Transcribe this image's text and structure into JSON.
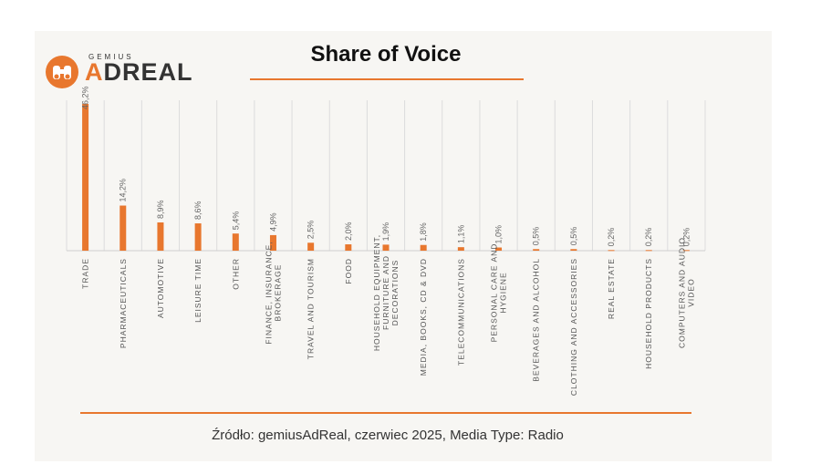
{
  "header": {
    "title": "Share of Voice",
    "logo_small": "GEMIUS",
    "logo_big_a": "A",
    "logo_big_rest": "DREAL"
  },
  "footer": {
    "source": "Źródło: gemiusAdReal, czerwiec 2025, Media Type: Radio"
  },
  "colors": {
    "accent": "#e8772e",
    "grid": "#dcdcdc"
  },
  "chart_data": {
    "type": "bar",
    "title": "Share of Voice",
    "xlabel": "",
    "ylabel": "",
    "grid": "vertical separators between categories",
    "categories": [
      [
        "TRADE"
      ],
      [
        "PHARMACEUTICALS"
      ],
      [
        "AUTOMOTIVE"
      ],
      [
        "LEISURE TIME"
      ],
      [
        "OTHER"
      ],
      [
        "FINANCE, INSURANCE,",
        "BROKERAGE"
      ],
      [
        "TRAVEL AND TOURISM"
      ],
      [
        "FOOD"
      ],
      [
        "HOUSEHOLD EQUIPMENT,",
        "FURNITURE AND",
        "DECORATIONS"
      ],
      [
        "MEDIA, BOOKS, CD & DVD"
      ],
      [
        "TELECOMMUNICATIONS"
      ],
      [
        "PERSONAL CARE AND",
        "HYGIENE"
      ],
      [
        "BEVERAGES AND ALCOHOL"
      ],
      [
        "CLOTHING AND ACCESSORIES"
      ],
      [
        "REAL ESTATE"
      ],
      [
        "HOUSEHOLD PRODUCTS"
      ],
      [
        "COMPUTERS AND AUDIO",
        "VIDEO"
      ]
    ],
    "values": [
      46.2,
      14.2,
      8.9,
      8.6,
      5.4,
      4.9,
      2.5,
      2.0,
      1.9,
      1.8,
      1.1,
      1.0,
      0.5,
      0.5,
      0.2,
      0.2,
      0.2
    ],
    "value_labels": [
      "46,2%",
      "14,2%",
      "8,9%",
      "8,6%",
      "5,4%",
      "4,9%",
      "2,5%",
      "2,0%",
      "1,9%",
      "1,8%",
      "1,1%",
      "1,0%",
      "0,5%",
      "0,5%",
      "0,2%",
      "0,2%",
      "0,2%"
    ],
    "ylim": [
      0,
      46.2
    ]
  }
}
